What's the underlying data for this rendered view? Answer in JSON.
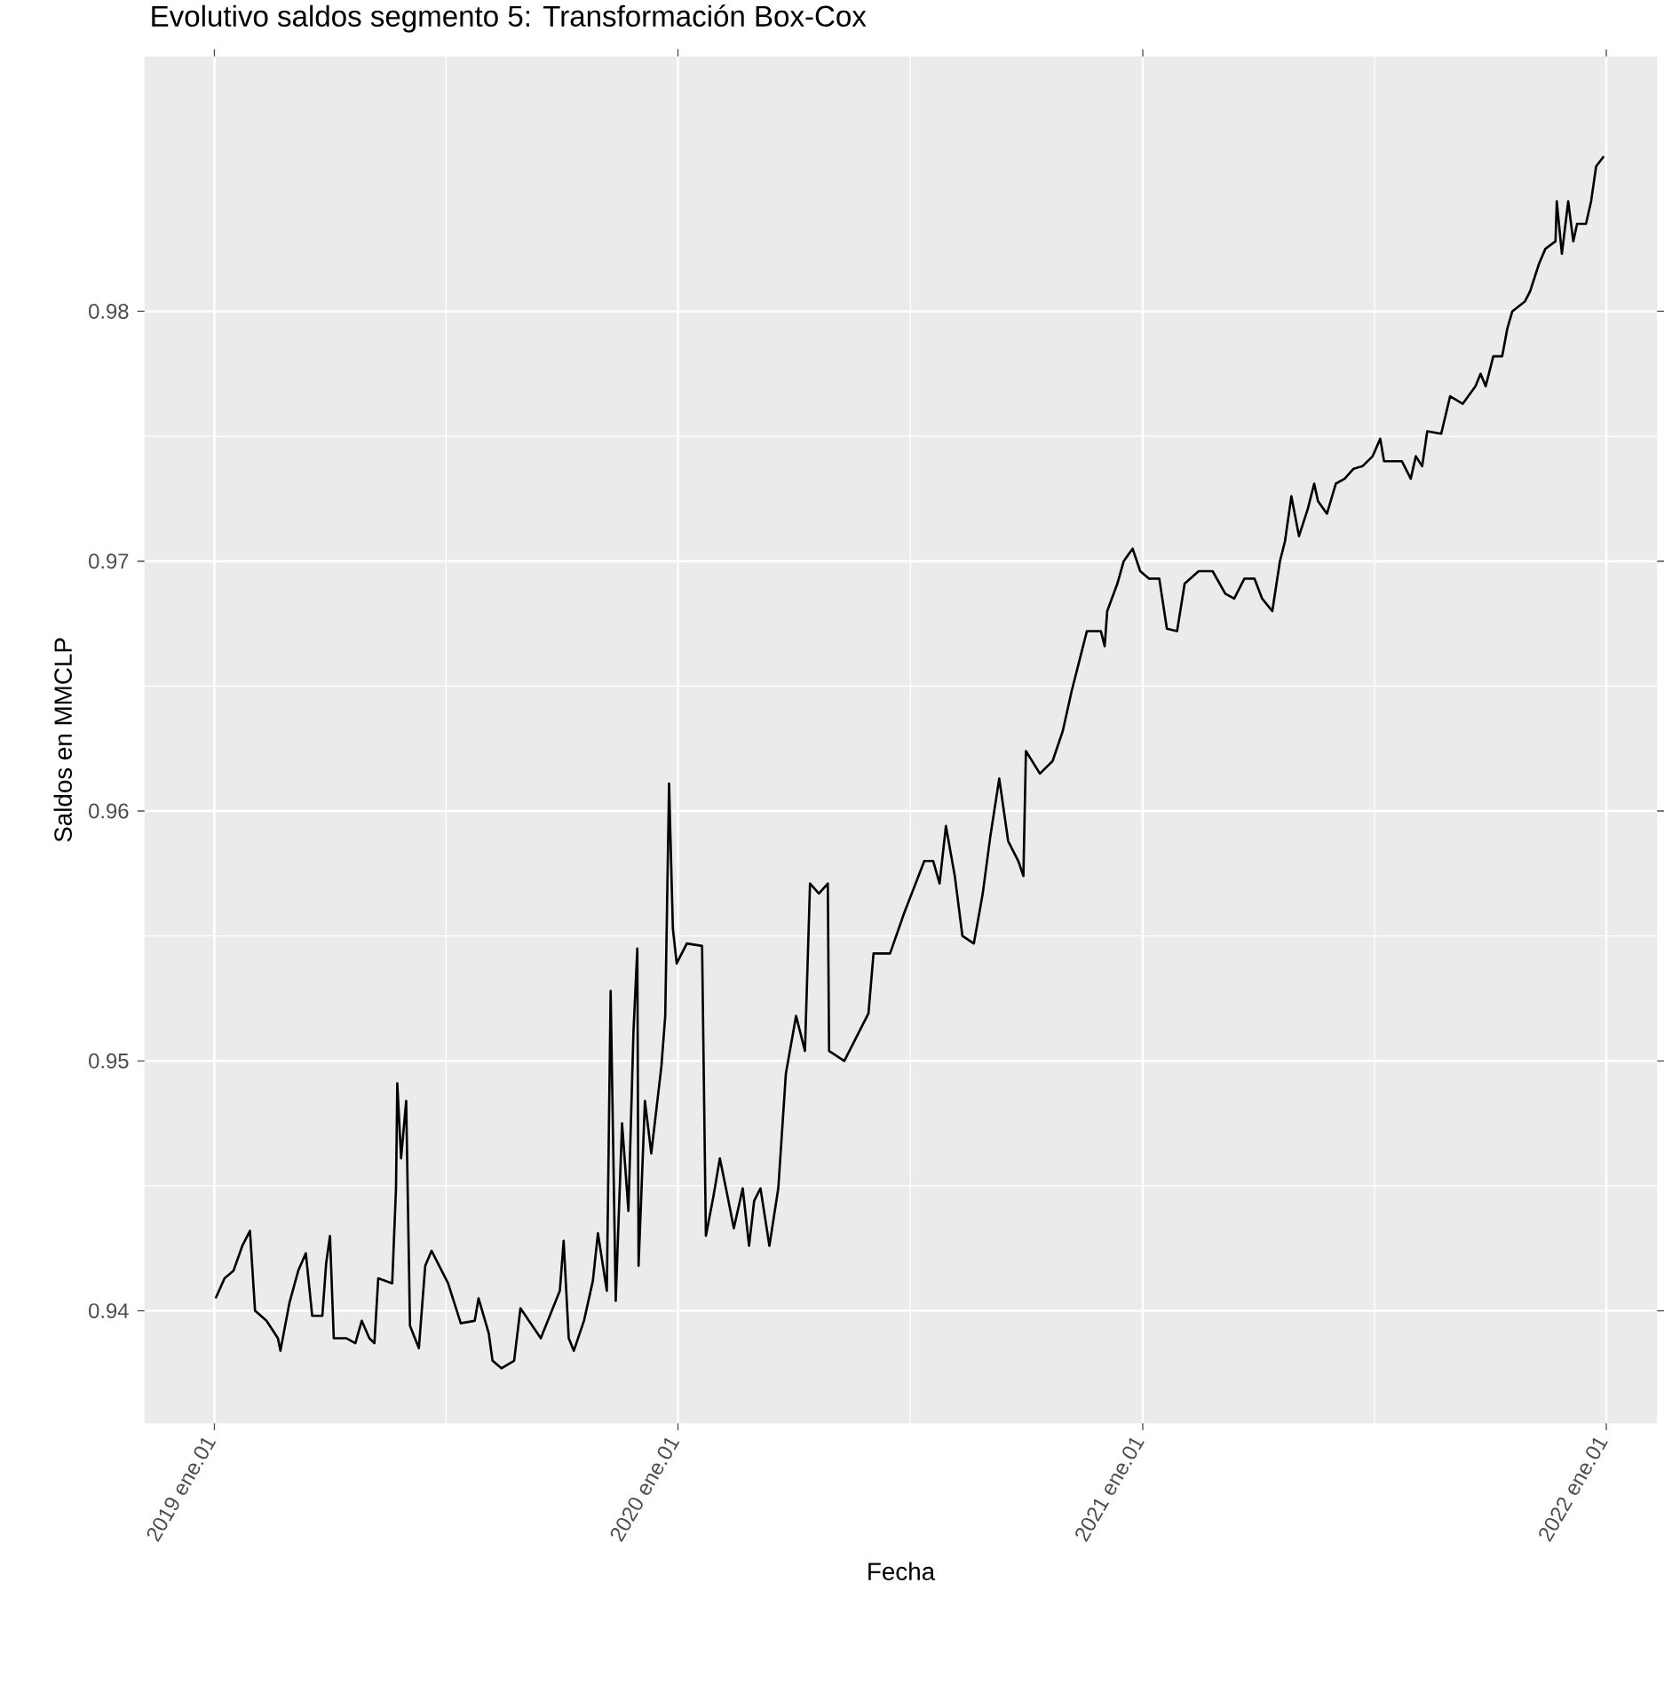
{
  "chart_data": {
    "type": "line",
    "title": "Evolutivo saldos segmento 5: Transformación Box-Cox",
    "xlabel": "Fecha",
    "ylabel": "Saldos en MMCLP",
    "color": "#000000",
    "grid": true,
    "xlim": [
      "2018-11-07",
      "2022-02-10"
    ],
    "ylim": [
      0.9355,
      0.9902
    ],
    "xticks": [
      {
        "value": "2019-01-01",
        "label": "2019 ene.01"
      },
      {
        "value": "2020-01-01",
        "label": "2020 ene.01"
      },
      {
        "value": "2021-01-01",
        "label": "2021 ene.01"
      },
      {
        "value": "2022-01-01",
        "label": "2022 ene.01"
      }
    ],
    "yticks": [
      0.94,
      0.95,
      0.96,
      0.97,
      0.98
    ],
    "x": [
      "2019-01-02",
      "2019-01-09",
      "2019-01-16",
      "2019-01-23",
      "2019-01-29",
      "2019-02-02",
      "2019-02-11",
      "2019-02-20",
      "2019-02-22",
      "2019-03-01",
      "2019-03-08",
      "2019-03-14",
      "2019-03-19",
      "2019-03-27",
      "2019-03-30",
      "2019-04-02",
      "2019-04-05",
      "2019-04-15",
      "2019-04-22",
      "2019-04-27",
      "2019-05-03",
      "2019-05-07",
      "2019-05-10",
      "2019-05-21",
      "2019-05-24",
      "2019-05-25",
      "2019-05-28",
      "2019-06-01",
      "2019-06-04",
      "2019-06-11",
      "2019-06-16",
      "2019-06-21",
      "2019-07-04",
      "2019-07-14",
      "2019-07-25",
      "2019-07-28",
      "2019-08-05",
      "2019-08-08",
      "2019-08-15",
      "2019-08-25",
      "2019-08-30",
      "2019-09-15",
      "2019-09-30",
      "2019-10-03",
      "2019-10-07",
      "2019-10-11",
      "2019-10-19",
      "2019-10-26",
      "2019-10-30",
      "2019-11-06",
      "2019-11-09",
      "2019-11-13",
      "2019-11-18",
      "2019-11-23",
      "2019-11-27",
      "2019-11-30",
      "2019-12-01",
      "2019-12-06",
      "2019-12-11",
      "2019-12-19",
      "2019-12-22",
      "2019-12-25",
      "2019-12-28",
      "2019-12-31",
      "2020-01-08",
      "2020-01-20",
      "2020-01-23",
      "2020-01-29",
      "2020-02-03",
      "2020-02-09",
      "2020-02-14",
      "2020-02-21",
      "2020-02-26",
      "2020-03-01",
      "2020-03-06",
      "2020-03-13",
      "2020-03-20",
      "2020-03-26",
      "2020-04-03",
      "2020-04-10",
      "2020-04-14",
      "2020-04-21",
      "2020-04-28",
      "2020-04-29",
      "2020-05-11",
      "2020-05-22",
      "2020-05-30",
      "2020-06-03",
      "2020-06-16",
      "2020-06-27",
      "2020-07-13",
      "2020-07-20",
      "2020-07-25",
      "2020-07-30",
      "2020-08-06",
      "2020-08-12",
      "2020-08-21",
      "2020-08-28",
      "2020-09-03",
      "2020-09-10",
      "2020-09-17",
      "2020-09-25",
      "2020-09-29",
      "2020-10-01",
      "2020-10-12",
      "2020-10-22",
      "2020-10-30",
      "2020-11-06",
      "2020-11-13",
      "2020-11-18",
      "2020-11-29",
      "2020-12-02",
      "2020-12-04",
      "2020-12-12",
      "2020-12-17",
      "2020-12-24",
      "2020-12-30",
      "2021-01-06",
      "2021-01-14",
      "2021-01-20",
      "2021-01-28",
      "2021-02-03",
      "2021-02-14",
      "2021-02-25",
      "2021-03-07",
      "2021-03-14",
      "2021-03-22",
      "2021-03-30",
      "2021-04-05",
      "2021-04-13",
      "2021-04-19",
      "2021-04-23",
      "2021-04-28",
      "2021-05-04",
      "2021-05-11",
      "2021-05-16",
      "2021-05-19",
      "2021-05-26",
      "2021-06-02",
      "2021-06-09",
      "2021-06-16",
      "2021-06-23",
      "2021-07-01",
      "2021-07-07",
      "2021-07-10",
      "2021-07-24",
      "2021-07-31",
      "2021-08-04",
      "2021-08-09",
      "2021-08-13",
      "2021-08-24",
      "2021-08-31",
      "2021-09-10",
      "2021-09-20",
      "2021-09-24",
      "2021-09-28",
      "2021-10-04",
      "2021-10-11",
      "2021-10-15",
      "2021-10-19",
      "2021-10-29",
      "2021-11-02",
      "2021-11-09",
      "2021-11-14",
      "2021-11-22",
      "2021-11-23",
      "2021-11-27",
      "2021-12-02",
      "2021-12-06",
      "2021-12-09",
      "2021-12-16",
      "2021-12-20",
      "2021-12-24",
      "2021-12-30"
    ],
    "values": [
      0.9405,
      0.9413,
      0.9416,
      0.9426,
      0.9432,
      0.94,
      0.9396,
      0.9389,
      0.9384,
      0.9403,
      0.9416,
      0.9423,
      0.9398,
      0.9398,
      0.9419,
      0.943,
      0.9389,
      0.9389,
      0.9387,
      0.9396,
      0.9389,
      0.9387,
      0.9413,
      0.9411,
      0.9449,
      0.9491,
      0.9461,
      0.9484,
      0.9394,
      0.9385,
      0.9418,
      0.9424,
      0.9411,
      0.9395,
      0.9396,
      0.9405,
      0.9391,
      0.938,
      0.9377,
      0.938,
      0.9401,
      0.9389,
      0.9408,
      0.9428,
      0.9389,
      0.9384,
      0.9396,
      0.9412,
      0.9431,
      0.9408,
      0.9528,
      0.9404,
      0.9475,
      0.944,
      0.9512,
      0.9545,
      0.9418,
      0.9484,
      0.9463,
      0.9498,
      0.9518,
      0.9611,
      0.9553,
      0.9539,
      0.9547,
      0.9546,
      0.943,
      0.9446,
      0.9461,
      0.9446,
      0.9433,
      0.9449,
      0.9426,
      0.9444,
      0.9449,
      0.9426,
      0.9449,
      0.9495,
      0.9518,
      0.9504,
      0.9571,
      0.9567,
      0.9571,
      0.9504,
      0.95,
      0.9511,
      0.9519,
      0.9543,
      0.9543,
      0.9559,
      0.958,
      0.958,
      0.9571,
      0.9594,
      0.9574,
      0.955,
      0.9547,
      0.9567,
      0.959,
      0.9613,
      0.9588,
      0.958,
      0.9574,
      0.9624,
      0.9615,
      0.962,
      0.9632,
      0.9648,
      0.9662,
      0.9672,
      0.9672,
      0.9666,
      0.968,
      0.9691,
      0.97,
      0.9705,
      0.9696,
      0.9693,
      0.9693,
      0.9673,
      0.9672,
      0.9691,
      0.9696,
      0.9696,
      0.9687,
      0.9685,
      0.9693,
      0.9693,
      0.9685,
      0.968,
      0.97,
      0.9708,
      0.9726,
      0.971,
      0.9721,
      0.9731,
      0.9724,
      0.9719,
      0.9731,
      0.9733,
      0.9737,
      0.9738,
      0.9742,
      0.9749,
      0.974,
      0.974,
      0.9733,
      0.9742,
      0.9738,
      0.9752,
      0.9751,
      0.9766,
      0.9763,
      0.977,
      0.9775,
      0.977,
      0.9782,
      0.9782,
      0.9793,
      0.98,
      0.9804,
      0.9808,
      0.9819,
      0.9825,
      0.9828,
      0.9844,
      0.9823,
      0.9844,
      0.9828,
      0.9835,
      0.9835,
      0.9844,
      0.9858,
      0.9862
    ]
  }
}
